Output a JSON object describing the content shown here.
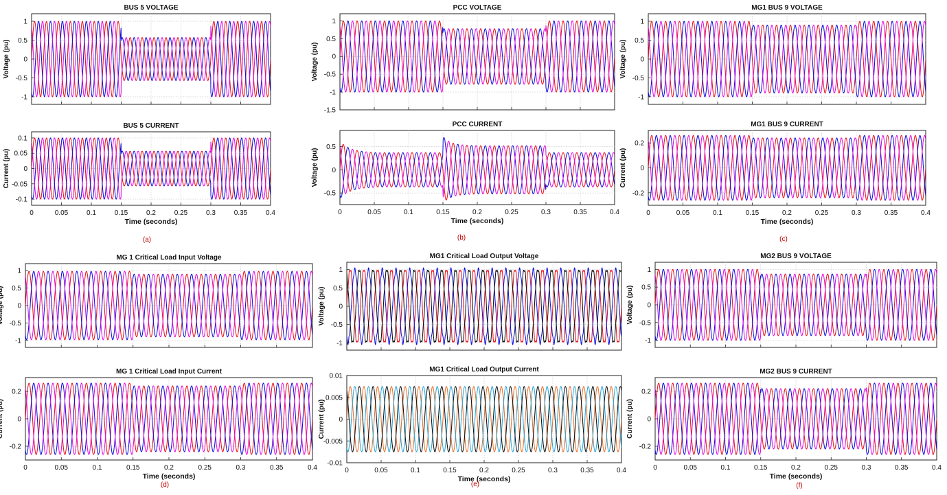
{
  "figure_tags": [
    "(a)",
    "(b)",
    "(c)",
    "(d)",
    "(e)",
    "(f)"
  ],
  "chart_data": [
    {
      "type": "line",
      "title": "BUS 5 VOLTAGE",
      "ylabel": "Voltage (pu)",
      "xlabel": "",
      "xlim": [
        0,
        0.4
      ],
      "ylim": [
        -1.2,
        1.2
      ],
      "yticks": [
        -1,
        -0.5,
        0,
        0.5,
        1
      ],
      "ytick_labels": [
        "-1",
        "-0.5",
        "0",
        "0.5",
        "1"
      ],
      "xticks": [
        0,
        0.05,
        0.1,
        0.15,
        0.2,
        0.25,
        0.3,
        0.35,
        0.4
      ],
      "xtick_labels": [],
      "frequency_hz": 50,
      "series_colors": [
        "#e8141e",
        "#1010dc",
        "#e010e0"
      ],
      "amplitude_segments": [
        {
          "t_start": 0,
          "t_end": 0.15,
          "amplitude": 1.0
        },
        {
          "t_start": 0.15,
          "t_end": 0.3,
          "amplitude": 0.57
        },
        {
          "t_start": 0.3,
          "t_end": 0.4,
          "amplitude": 1.0
        }
      ]
    },
    {
      "type": "line",
      "title": "PCC VOLTAGE",
      "ylabel": "Voltage (pu)",
      "xlabel": "",
      "xlim": [
        0,
        0.4
      ],
      "ylim": [
        -1.5,
        1.2
      ],
      "yticks": [
        -1.5,
        -1,
        -0.5,
        0,
        0.5,
        1
      ],
      "ytick_labels": [
        "-1.5",
        "-1",
        "-0.5",
        "0",
        "0.5",
        "1"
      ],
      "xticks": [
        0,
        0.05,
        0.1,
        0.15,
        0.2,
        0.25,
        0.3,
        0.35,
        0.4
      ],
      "xtick_labels": [],
      "frequency_hz": 50,
      "series_colors": [
        "#e8141e",
        "#1010dc",
        "#e010e0"
      ],
      "amplitude_segments": [
        {
          "t_start": 0,
          "t_end": 0.15,
          "amplitude": 1.0
        },
        {
          "t_start": 0.15,
          "t_end": 0.3,
          "amplitude": 0.78
        },
        {
          "t_start": 0.3,
          "t_end": 0.4,
          "amplitude": 1.0
        }
      ]
    },
    {
      "type": "line",
      "title": "MG1 BUS 9 VOLTAGE",
      "ylabel": "Voltage (pu)",
      "xlabel": "",
      "xlim": [
        0,
        0.4
      ],
      "ylim": [
        -1.2,
        1.2
      ],
      "yticks": [
        -1,
        -0.5,
        0,
        0.5,
        1
      ],
      "ytick_labels": [
        "-1",
        "-0.5",
        "0",
        "0.5",
        "1"
      ],
      "xticks": [
        0,
        0.05,
        0.1,
        0.15,
        0.2,
        0.25,
        0.3,
        0.35,
        0.4
      ],
      "xtick_labels": [],
      "frequency_hz": 50,
      "series_colors": [
        "#e8141e",
        "#1010dc",
        "#e010e0"
      ],
      "amplitude_segments": [
        {
          "t_start": 0,
          "t_end": 0.15,
          "amplitude": 1.0
        },
        {
          "t_start": 0.15,
          "t_end": 0.3,
          "amplitude": 0.9
        },
        {
          "t_start": 0.3,
          "t_end": 0.4,
          "amplitude": 1.0
        }
      ]
    },
    {
      "type": "line",
      "title": "BUS 5 CURRENT",
      "ylabel": "Current (pu)",
      "xlabel": "Time (seconds)",
      "xlim": [
        0,
        0.4
      ],
      "ylim": [
        -0.12,
        0.12
      ],
      "yticks": [
        -0.1,
        -0.05,
        0,
        0.05,
        0.1
      ],
      "ytick_labels": [
        "-0.1",
        "-0.05",
        "0",
        "0.05",
        "0.1"
      ],
      "xticks": [
        0,
        0.05,
        0.1,
        0.15,
        0.2,
        0.25,
        0.3,
        0.35,
        0.4
      ],
      "xtick_labels": [
        "0",
        "0.05",
        "0.1",
        "0.15",
        "0.2",
        "0.25",
        "0.3",
        "0.35",
        "0.4"
      ],
      "frequency_hz": 50,
      "series_colors": [
        "#e8141e",
        "#1010dc",
        "#e010e0"
      ],
      "amplitude_segments": [
        {
          "t_start": 0,
          "t_end": 0.15,
          "amplitude": 0.1
        },
        {
          "t_start": 0.15,
          "t_end": 0.3,
          "amplitude": 0.057
        },
        {
          "t_start": 0.3,
          "t_end": 0.4,
          "amplitude": 0.1
        }
      ]
    },
    {
      "type": "line",
      "title": "PCC CURRENT",
      "ylabel": "Voltage (pu)",
      "xlabel": "Time (seconds)",
      "xlim": [
        0,
        0.4
      ],
      "ylim": [
        -0.75,
        0.85
      ],
      "yticks": [
        -0.5,
        0,
        0.5
      ],
      "ytick_labels": [
        "-0.5",
        "0",
        "0.5"
      ],
      "xticks": [
        0,
        0.05,
        0.1,
        0.15,
        0.2,
        0.25,
        0.3,
        0.35,
        0.4
      ],
      "xtick_labels": [
        "0",
        "0.05",
        "0.1",
        "0.15",
        "0.2",
        "0.25",
        "0.3",
        "0.35",
        "0.4"
      ],
      "frequency_hz": 50,
      "series_colors": [
        "#e8141e",
        "#1010dc",
        "#e010e0"
      ],
      "amplitude_segments": [
        {
          "t_start": 0,
          "t_end": 0.15,
          "amplitude": 0.37
        },
        {
          "t_start": 0.15,
          "t_end": 0.3,
          "amplitude": 0.52
        },
        {
          "t_start": 0.3,
          "t_end": 0.4,
          "amplitude": 0.37
        }
      ]
    },
    {
      "type": "line",
      "title": "MG1 BUS 9 CURRENT",
      "ylabel": "Current (pu)",
      "xlabel": "Time (seconds)",
      "xlim": [
        0,
        0.4
      ],
      "ylim": [
        -0.3,
        0.3
      ],
      "yticks": [
        -0.2,
        0,
        0.2
      ],
      "ytick_labels": [
        "-0.2",
        "0",
        "0.2"
      ],
      "xticks": [
        0,
        0.05,
        0.1,
        0.15,
        0.2,
        0.25,
        0.3,
        0.35,
        0.4
      ],
      "xtick_labels": [
        "0",
        "0.05",
        "0.1",
        "0.15",
        "0.2",
        "0.25",
        "0.3",
        "0.35",
        "0.4"
      ],
      "frequency_hz": 50,
      "series_colors": [
        "#e8141e",
        "#1010dc",
        "#e010e0"
      ],
      "amplitude_segments": [
        {
          "t_start": 0,
          "t_end": 0.15,
          "amplitude": 0.26
        },
        {
          "t_start": 0.15,
          "t_end": 0.3,
          "amplitude": 0.24
        },
        {
          "t_start": 0.3,
          "t_end": 0.4,
          "amplitude": 0.26
        }
      ]
    },
    {
      "type": "line",
      "title": "MG 1 Critical Load Input Voltage",
      "ylabel": "Voltage (pu)",
      "xlabel": "",
      "xlim": [
        0,
        0.4
      ],
      "ylim": [
        -1.2,
        1.2
      ],
      "yticks": [
        -1,
        -0.5,
        0,
        0.5,
        1
      ],
      "ytick_labels": [
        "-1",
        "-0.5",
        "0",
        "0.5",
        "1"
      ],
      "xticks": [
        0,
        0.05,
        0.1,
        0.15,
        0.2,
        0.25,
        0.3,
        0.35,
        0.4
      ],
      "xtick_labels": [],
      "frequency_hz": 50,
      "series_colors": [
        "#e8141e",
        "#1010dc",
        "#e010e0"
      ],
      "amplitude_segments": [
        {
          "t_start": 0,
          "t_end": 0.15,
          "amplitude": 0.98
        },
        {
          "t_start": 0.15,
          "t_end": 0.3,
          "amplitude": 0.9
        },
        {
          "t_start": 0.3,
          "t_end": 0.4,
          "amplitude": 0.98
        }
      ]
    },
    {
      "type": "line",
      "title": "MG1 Critical Load Output Voltage",
      "ylabel": "Voltage (pu)",
      "xlabel": "",
      "xlim": [
        0,
        0.4
      ],
      "ylim": [
        -1.2,
        1.2
      ],
      "yticks": [
        -1,
        -0.5,
        0,
        0.5,
        1
      ],
      "ytick_labels": [
        "-1",
        "-0.5",
        "0",
        "0.5",
        "1"
      ],
      "xticks": [
        0,
        0.05,
        0.1,
        0.15,
        0.2,
        0.25,
        0.3,
        0.35,
        0.4
      ],
      "xtick_labels": [],
      "frequency_hz": 50,
      "series_colors": [
        "#e8141e",
        "#1010dc",
        "#111111"
      ],
      "amplitude_segments": [
        {
          "t_start": 0,
          "t_end": 0.4,
          "amplitude": 1.0
        }
      ]
    },
    {
      "type": "line",
      "title": "MG2  BUS 9 VOLTAGE",
      "ylabel": "Voltage (pu)",
      "xlabel": "",
      "xlim": [
        0,
        0.4
      ],
      "ylim": [
        -1.2,
        1.2
      ],
      "yticks": [
        -1,
        -0.5,
        0,
        0.5,
        1
      ],
      "ytick_labels": [
        "-1",
        "-0.5",
        "0",
        "0.5",
        "1"
      ],
      "xticks": [
        0,
        0.05,
        0.1,
        0.15,
        0.2,
        0.25,
        0.3,
        0.35,
        0.4
      ],
      "xtick_labels": [],
      "frequency_hz": 50,
      "series_colors": [
        "#e8141e",
        "#1010dc",
        "#e010e0"
      ],
      "amplitude_segments": [
        {
          "t_start": 0,
          "t_end": 0.15,
          "amplitude": 1.0
        },
        {
          "t_start": 0.15,
          "t_end": 0.3,
          "amplitude": 0.87
        },
        {
          "t_start": 0.3,
          "t_end": 0.4,
          "amplitude": 1.0
        }
      ]
    },
    {
      "type": "line",
      "title": "MG 1 Critical Load Input Current",
      "ylabel": "Current (pu)",
      "xlabel": "Time (seconds)",
      "xlim": [
        0,
        0.4
      ],
      "ylim": [
        -0.3,
        0.3
      ],
      "yticks": [
        -0.2,
        0,
        0.2
      ],
      "ytick_labels": [
        "-0.2",
        "0",
        "0.2"
      ],
      "xticks": [
        0,
        0.05,
        0.1,
        0.15,
        0.2,
        0.25,
        0.3,
        0.35,
        0.4
      ],
      "xtick_labels": [
        "0",
        "0.05",
        "0.1",
        "0.15",
        "0.2",
        "0.25",
        "0.3",
        "0.35",
        "0.4"
      ],
      "frequency_hz": 50,
      "series_colors": [
        "#e8141e",
        "#1010dc",
        "#e010e0"
      ],
      "amplitude_segments": [
        {
          "t_start": 0,
          "t_end": 0.15,
          "amplitude": 0.26
        },
        {
          "t_start": 0.15,
          "t_end": 0.3,
          "amplitude": 0.24
        },
        {
          "t_start": 0.3,
          "t_end": 0.4,
          "amplitude": 0.26
        }
      ]
    },
    {
      "type": "line",
      "title": "MG1 Critical Load Output Current",
      "ylabel": "Current (pu)",
      "xlabel": "Time (seconds)",
      "xlim": [
        0,
        0.4
      ],
      "ylim": [
        -0.01,
        0.01
      ],
      "yticks": [
        -0.01,
        -0.005,
        0,
        0.005,
        0.01
      ],
      "ytick_labels": [
        "-0.01",
        "-0.005",
        "0",
        "0.005",
        "0.01"
      ],
      "xticks": [
        0,
        0.05,
        0.1,
        0.15,
        0.2,
        0.25,
        0.3,
        0.35,
        0.4
      ],
      "xtick_labels": [
        "0",
        "0.05",
        "0.1",
        "0.15",
        "0.2",
        "0.25",
        "0.3",
        "0.35",
        "0.4"
      ],
      "frequency_hz": 50,
      "series_colors": [
        "#e8702a",
        "#2aa6d8",
        "#111111"
      ],
      "amplitude_segments": [
        {
          "t_start": 0,
          "t_end": 0.4,
          "amplitude": 0.0075
        }
      ]
    },
    {
      "type": "line",
      "title": "MG2  BUS 9 CURRENT",
      "ylabel": "Current (pu)",
      "xlabel": "Time (seconds)",
      "xlim": [
        0,
        0.4
      ],
      "ylim": [
        -0.3,
        0.3
      ],
      "yticks": [
        -0.2,
        0,
        0.2
      ],
      "ytick_labels": [
        "-0.2",
        "0",
        "0.2"
      ],
      "xticks": [
        0,
        0.05,
        0.1,
        0.15,
        0.2,
        0.25,
        0.3,
        0.35,
        0.4
      ],
      "xtick_labels": [
        "0",
        "0.05",
        "0.1",
        "0.15",
        "0.2",
        "0.25",
        "0.3",
        "0.35",
        "0.4"
      ],
      "frequency_hz": 50,
      "series_colors": [
        "#e8141e",
        "#1010dc",
        "#e010e0"
      ],
      "amplitude_segments": [
        {
          "t_start": 0,
          "t_end": 0.15,
          "amplitude": 0.26
        },
        {
          "t_start": 0.15,
          "t_end": 0.3,
          "amplitude": 0.22
        },
        {
          "t_start": 0.3,
          "t_end": 0.4,
          "amplitude": 0.26
        }
      ]
    }
  ]
}
